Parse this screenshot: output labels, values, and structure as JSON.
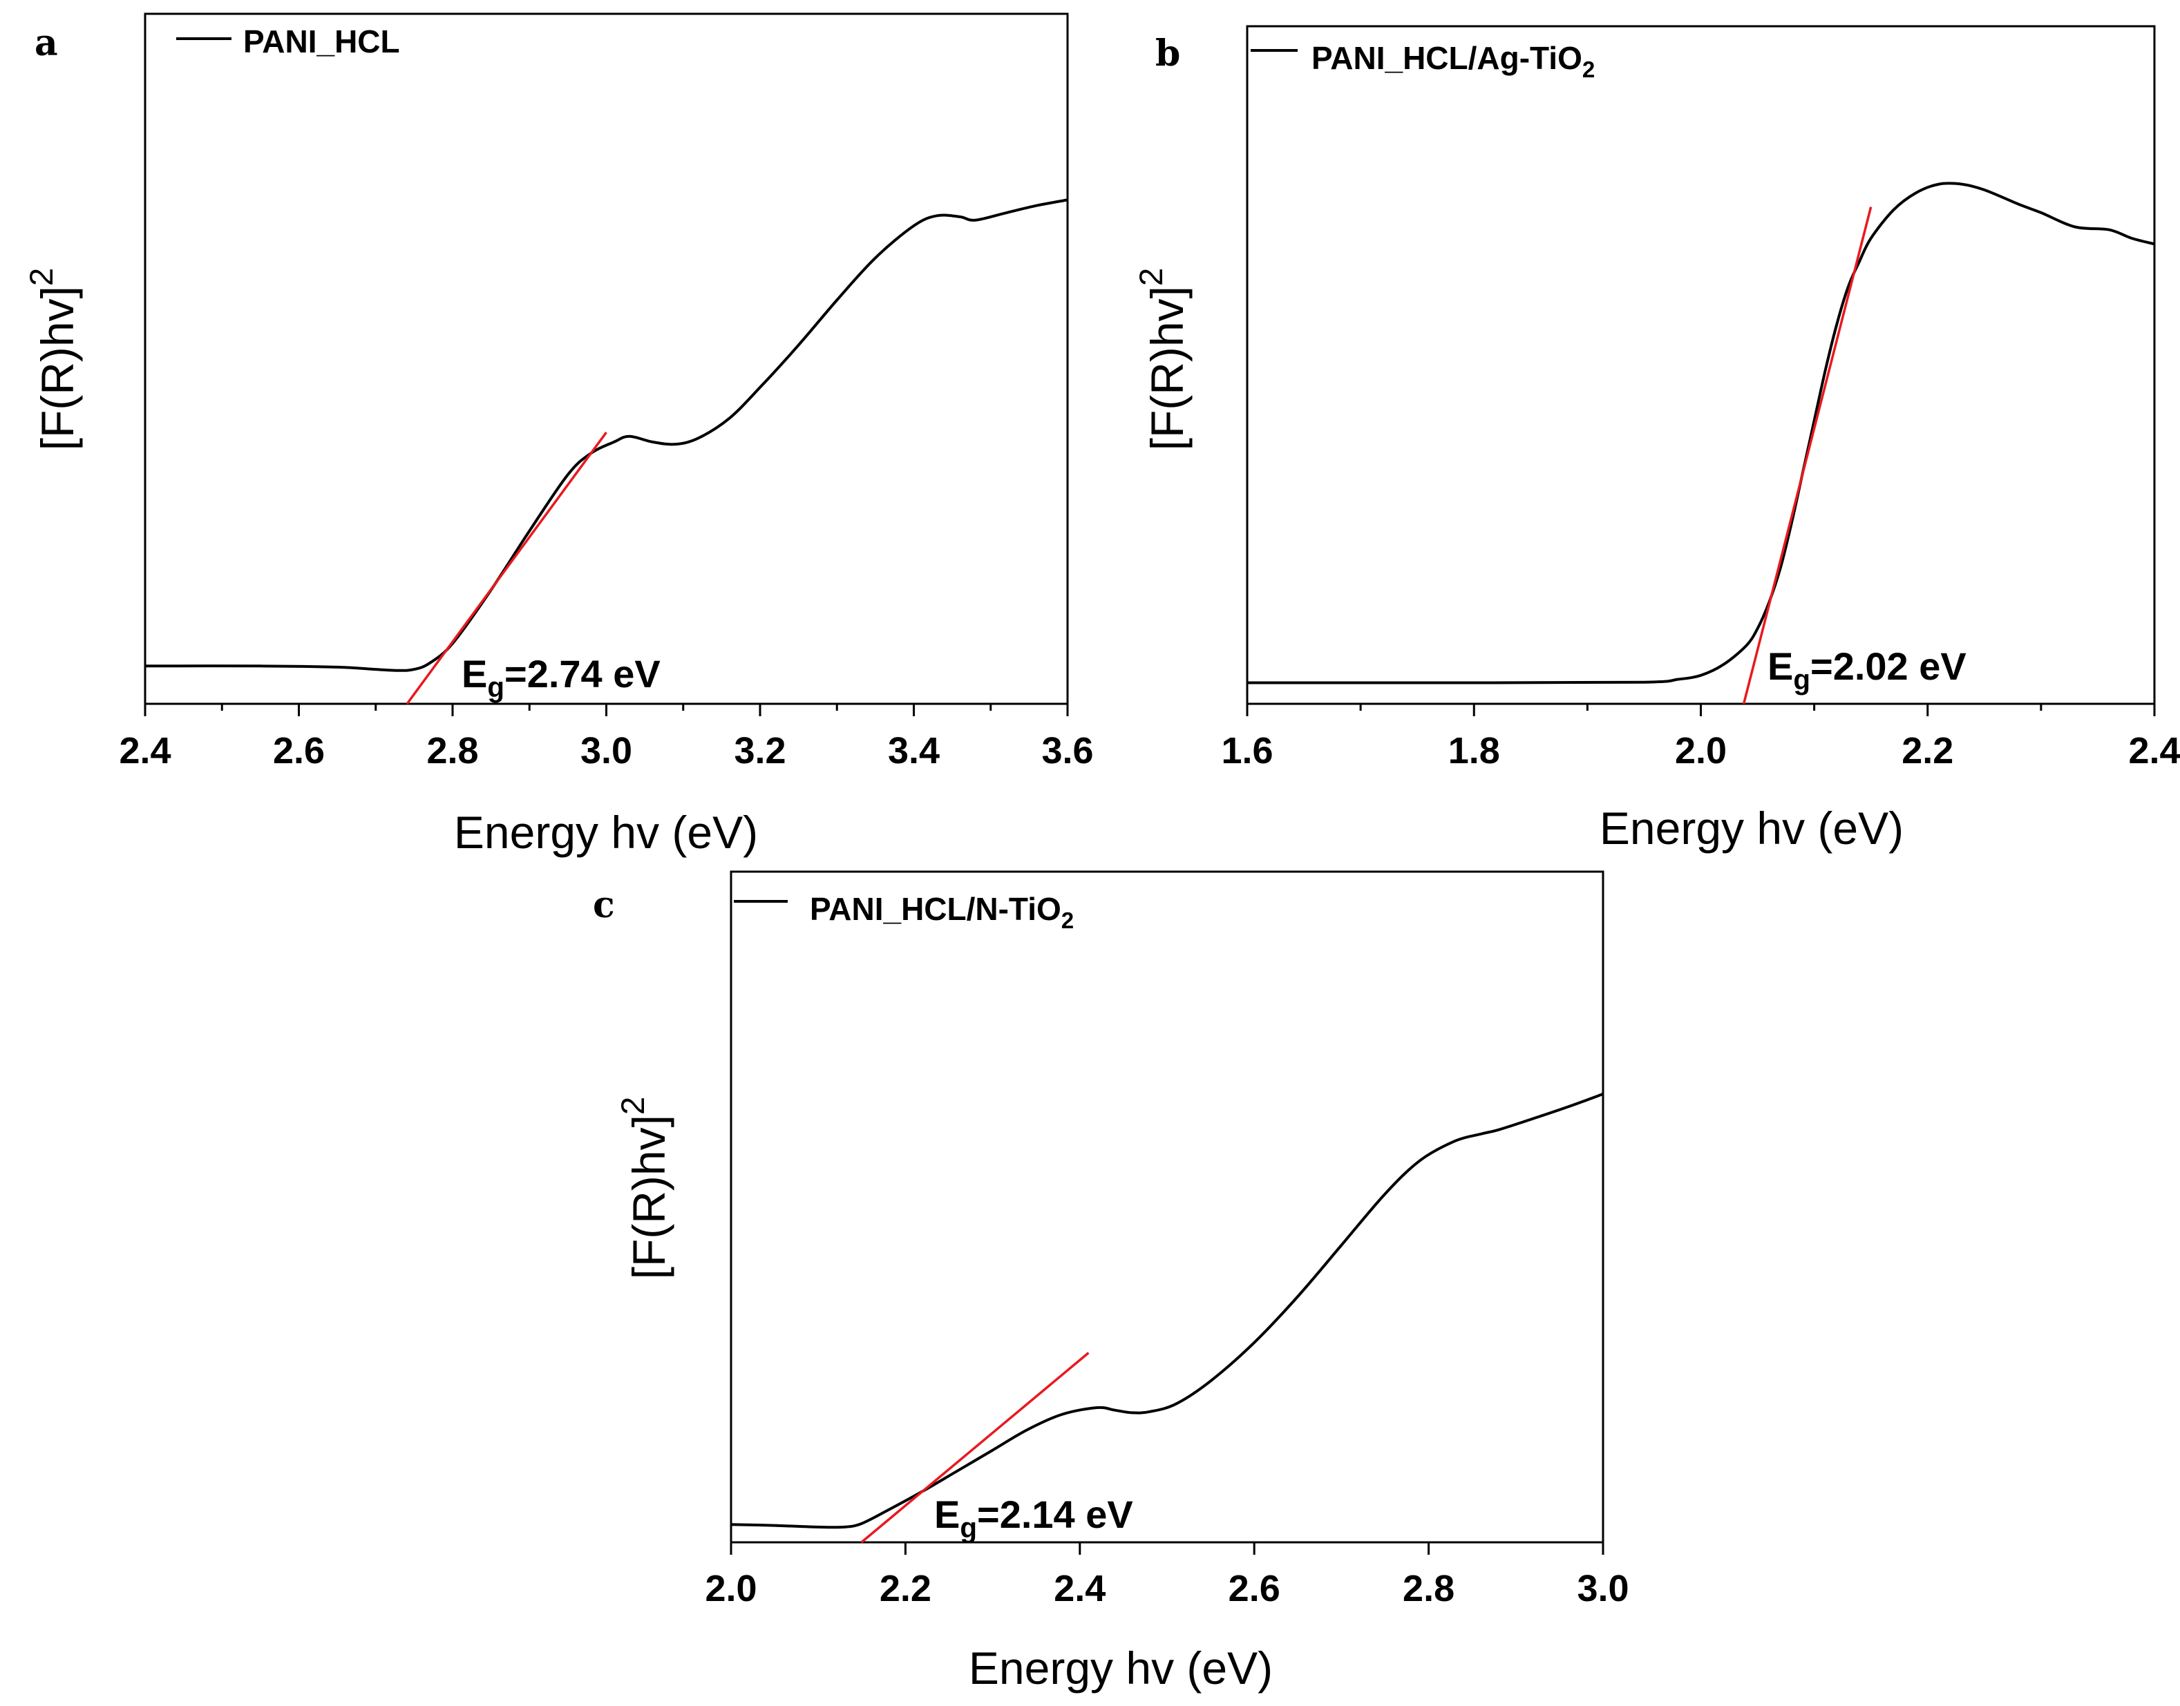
{
  "figure": {
    "colors": {
      "curve": "#000000",
      "fit_line": "#e8191f",
      "axis": "#000000"
    }
  },
  "chart_data": [
    {
      "panel": "a",
      "type": "line",
      "series": [
        {
          "name": "PANI_HCL",
          "x": [
            2.4,
            2.55,
            2.65,
            2.7,
            2.73,
            2.75,
            2.77,
            2.8,
            2.85,
            2.9,
            2.95,
            2.98,
            3.01,
            3.03,
            3.06,
            3.09,
            3.12,
            3.16,
            3.2,
            3.25,
            3.3,
            3.35,
            3.4,
            3.43,
            3.46,
            3.48,
            3.52,
            3.56,
            3.6
          ],
          "y": [
            0.05,
            0.05,
            0.048,
            0.044,
            0.042,
            0.044,
            0.055,
            0.09,
            0.185,
            0.29,
            0.39,
            0.428,
            0.448,
            0.458,
            0.448,
            0.444,
            0.455,
            0.49,
            0.545,
            0.62,
            0.7,
            0.775,
            0.832,
            0.85,
            0.848,
            0.842,
            0.855,
            0.868,
            0.878
          ]
        }
      ],
      "fit_line": {
        "x": [
          2.75,
          3.0
        ],
        "y": [
          0.0,
          0.465
        ]
      },
      "annotation": {
        "main": "E",
        "sub": "g",
        "value": "=2.74 eV"
      },
      "legend": "PANI_HCL",
      "xlabel": "Energy hv (eV)",
      "ylabel_main": "[F(R)hv]",
      "ylabel_sup": "2",
      "xlim": [
        2.4,
        3.6
      ],
      "ylim": [
        0,
        1
      ],
      "xticks": [
        "2.4",
        "2.6",
        "2.8",
        "3.0",
        "3.2",
        "3.4",
        "3.6"
      ],
      "yticks_shown": false
    },
    {
      "panel": "b",
      "type": "line",
      "series": [
        {
          "name": "PANI_HCL/Ag-TiO2",
          "x": [
            1.6,
            1.8,
            1.95,
            1.98,
            2.0,
            2.02,
            2.04,
            2.05,
            2.06,
            2.07,
            2.08,
            2.09,
            2.1,
            2.11,
            2.12,
            2.13,
            2.14,
            2.15,
            2.17,
            2.19,
            2.21,
            2.23,
            2.25,
            2.28,
            2.3,
            2.33,
            2.36,
            2.38,
            2.4
          ],
          "y": [
            0.02,
            0.02,
            0.021,
            0.026,
            0.033,
            0.052,
            0.085,
            0.115,
            0.16,
            0.22,
            0.3,
            0.39,
            0.48,
            0.57,
            0.65,
            0.715,
            0.76,
            0.8,
            0.85,
            0.88,
            0.895,
            0.895,
            0.885,
            0.86,
            0.845,
            0.82,
            0.815,
            0.8,
            0.79
          ]
        }
      ],
      "fit_line": {
        "x": [
          2.04,
          2.15
        ],
        "y": [
          0.0,
          0.855
        ]
      },
      "annotation": {
        "main": "E",
        "sub": "g",
        "value": "=2.02 eV"
      },
      "legend_main": "PANI_HCL/Ag-TiO",
      "legend_sub": "2",
      "xlabel": "Energy hv (eV)",
      "ylabel_main": "[F(R)hv]",
      "ylabel_sup": "2",
      "xlim": [
        1.6,
        2.4
      ],
      "ylim": [
        0,
        1
      ],
      "xticks": [
        "1.6",
        "1.8",
        "2.0",
        "2.2",
        "2.4"
      ],
      "yticks_shown": false
    },
    {
      "panel": "c",
      "type": "line",
      "series": [
        {
          "name": "PANI_HCL/N-TiO2",
          "x": [
            2.0,
            2.05,
            2.1,
            2.13,
            2.15,
            2.18,
            2.22,
            2.26,
            2.3,
            2.34,
            2.38,
            2.42,
            2.44,
            2.46,
            2.48,
            2.51,
            2.55,
            2.6,
            2.65,
            2.7,
            2.75,
            2.79,
            2.83,
            2.86,
            2.88,
            2.92,
            2.96,
            3.0
          ],
          "y": [
            0.02,
            0.018,
            0.015,
            0.015,
            0.022,
            0.048,
            0.085,
            0.125,
            0.165,
            0.205,
            0.235,
            0.248,
            0.243,
            0.238,
            0.24,
            0.255,
            0.3,
            0.375,
            0.465,
            0.565,
            0.665,
            0.73,
            0.768,
            0.782,
            0.79,
            0.812,
            0.835,
            0.86
          ]
        }
      ],
      "fit_line": {
        "x": [
          2.16,
          2.41
        ],
        "y": [
          0.0,
          0.355
        ]
      },
      "annotation": {
        "main": "E",
        "sub": "g",
        "value": "=2.14 eV"
      },
      "legend_main": "PANI_HCL/N-TiO",
      "legend_sub": "2",
      "xlabel": "Energy hv (eV)",
      "ylabel_main": "[F(R)hv]",
      "ylabel_sup": "2",
      "xlim": [
        2.0,
        3.0
      ],
      "ylim": [
        0,
        1
      ],
      "xticks": [
        "2.0",
        "2.2",
        "2.4",
        "2.6",
        "2.8",
        "3.0"
      ],
      "yticks_shown": false
    }
  ]
}
